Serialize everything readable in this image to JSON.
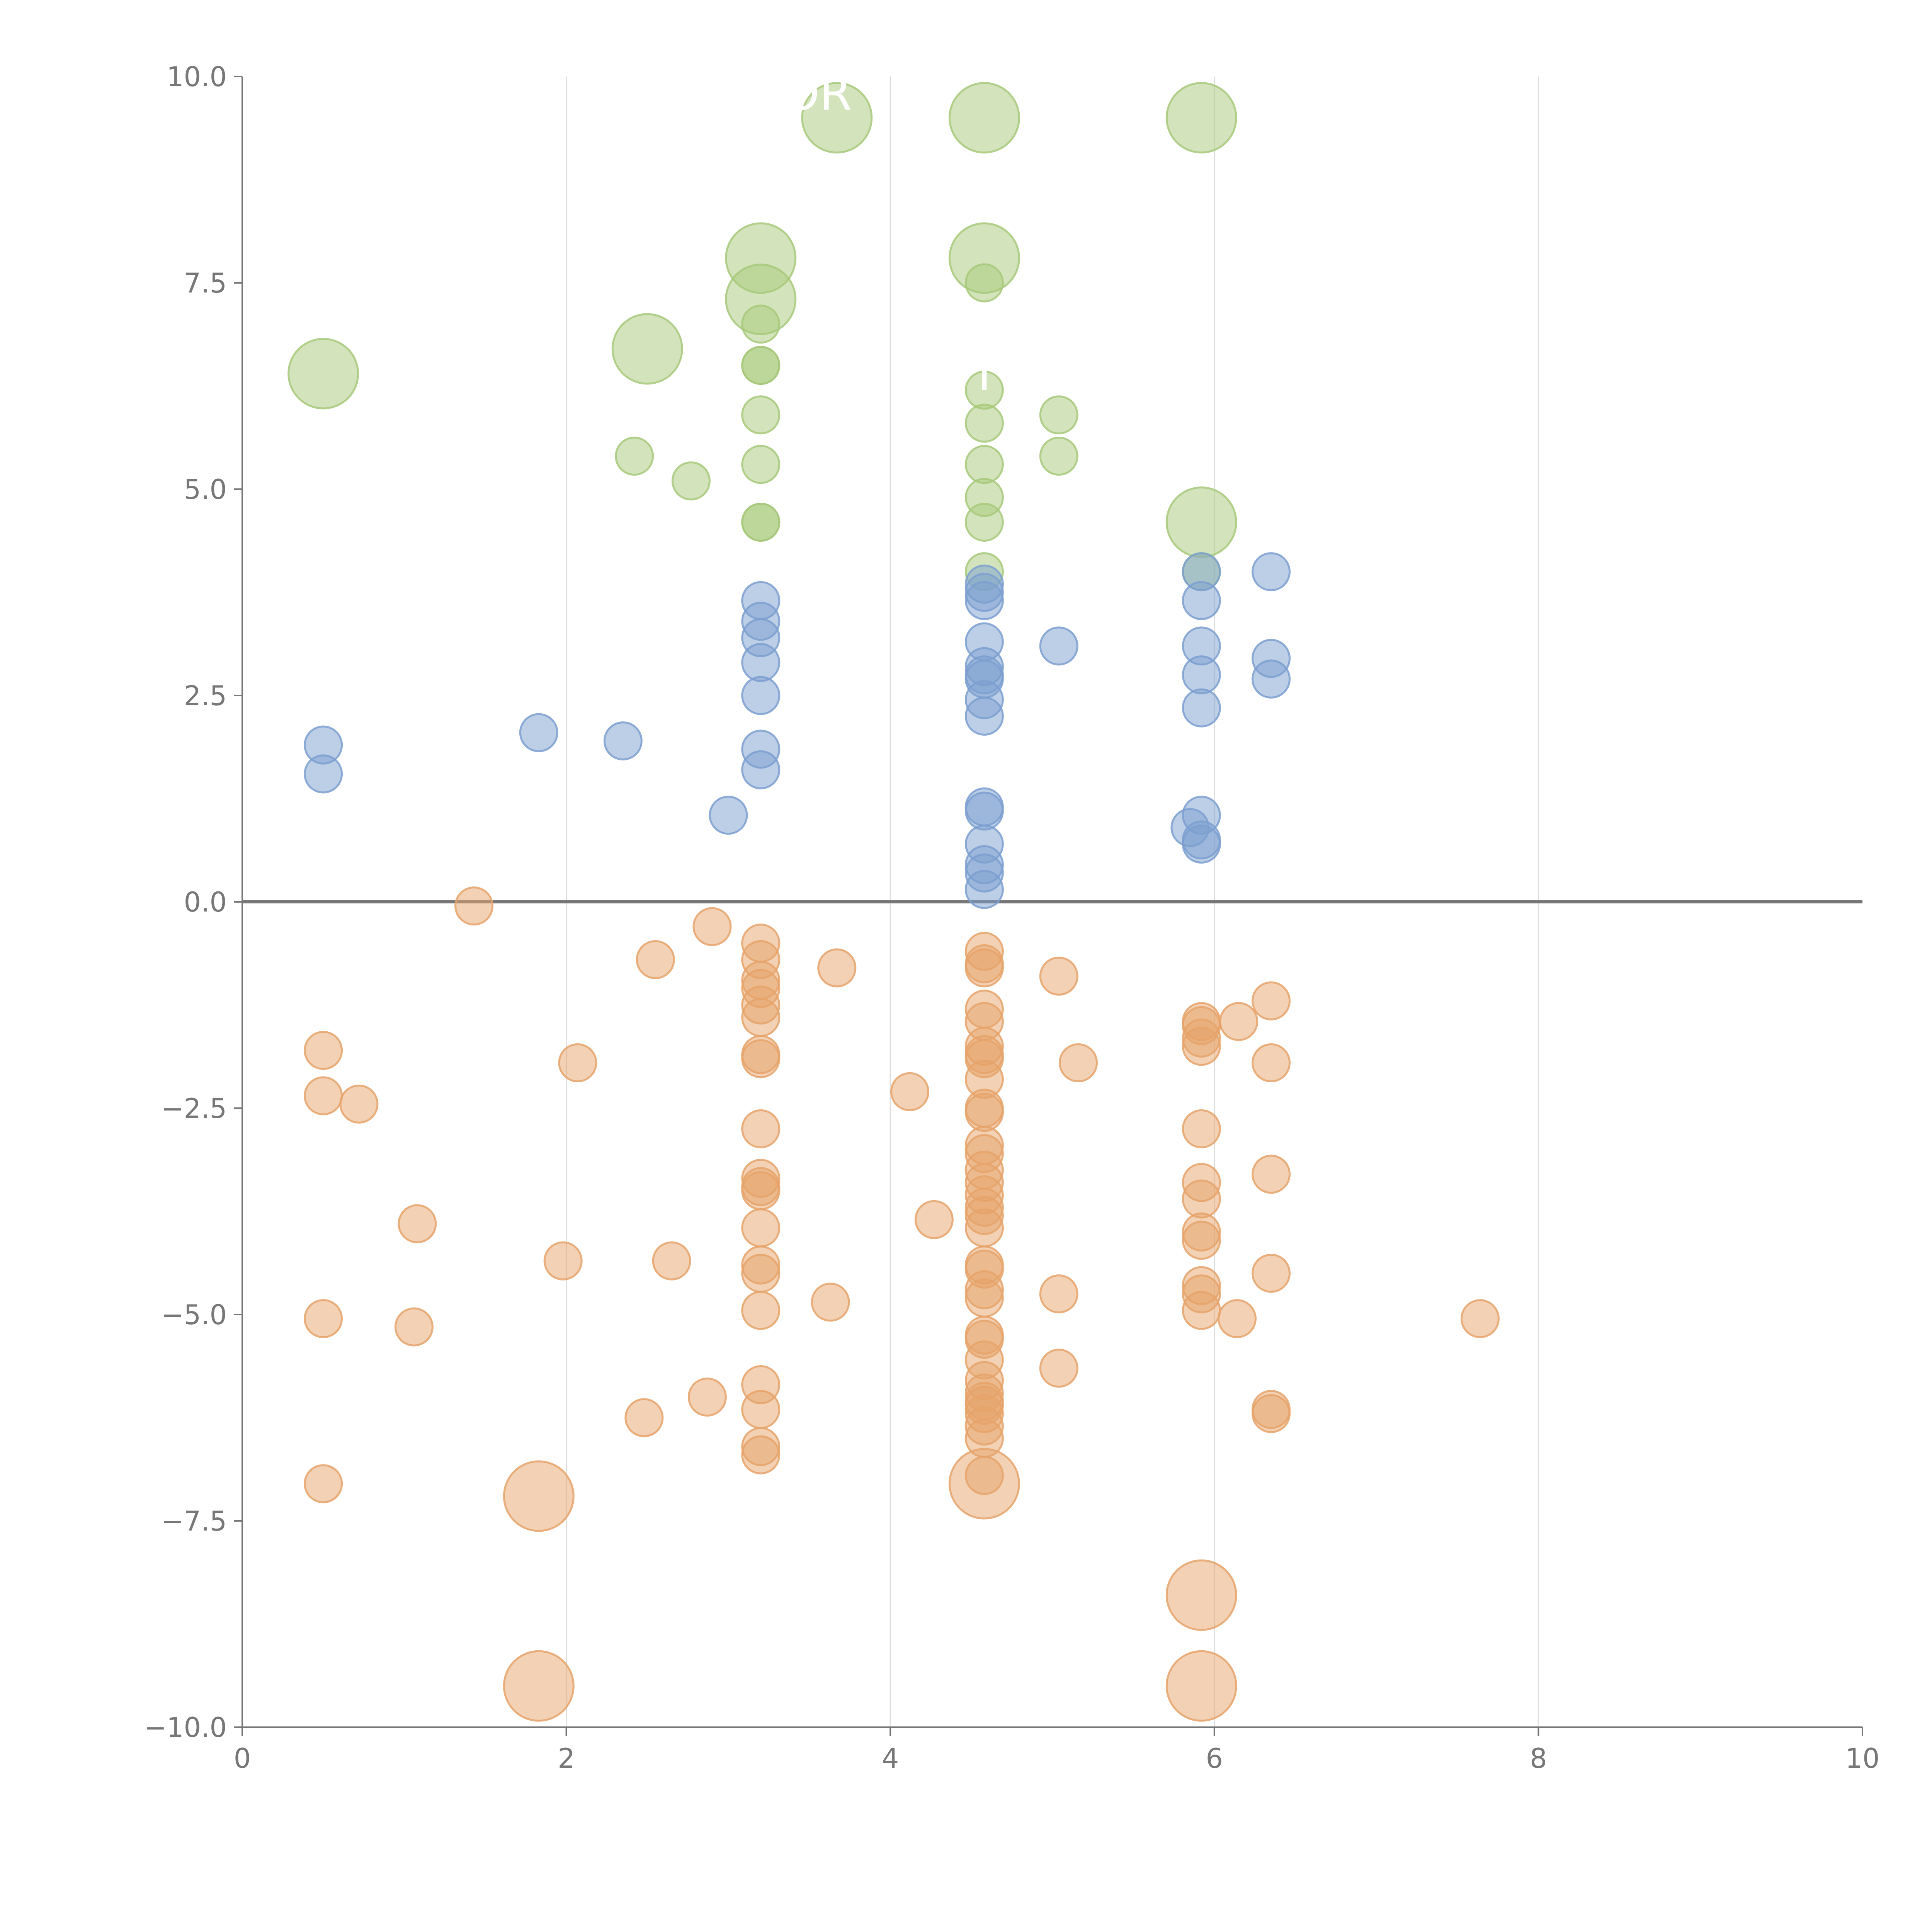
{
  "chart_data": {
    "type": "scatter",
    "title": "",
    "xlabel": "",
    "ylabel": "",
    "xlim": [
      0,
      10
    ],
    "ylim": [
      -10,
      10
    ],
    "x_ticks": [
      "0",
      "2",
      "4",
      "6",
      "8",
      "10"
    ],
    "y_ticks": [
      "10.0",
      "7.5",
      "5.0",
      "2.5",
      "0.0",
      "−2.5",
      "−5.0",
      "−7.5",
      "−10.0"
    ],
    "x_tick_values": [
      0,
      2,
      4,
      6,
      8,
      10
    ],
    "y_tick_values": [
      10,
      7.5,
      5,
      2.5,
      0,
      -2.5,
      -5,
      -7.5,
      -10
    ],
    "vertical_gridlines_at": [
      2,
      4,
      6,
      8
    ],
    "zero_line": true,
    "series": [
      {
        "name": "green",
        "color": "#a7c97a",
        "points": [
          {
            "x": 0.5,
            "y": 6.4,
            "size": "large"
          },
          {
            "x": 2.5,
            "y": 6.7,
            "size": "large"
          },
          {
            "x": 3.2,
            "y": 7.8,
            "size": "large"
          },
          {
            "x": 3.2,
            "y": 7.3,
            "size": "large"
          },
          {
            "x": 3.67,
            "y": 9.5,
            "size": "large"
          },
          {
            "x": 4.58,
            "y": 9.5,
            "size": "large"
          },
          {
            "x": 4.58,
            "y": 7.8,
            "size": "large"
          },
          {
            "x": 5.92,
            "y": 9.5,
            "size": "large"
          },
          {
            "x": 5.92,
            "y": 4.6,
            "size": "large"
          },
          {
            "x": 2.42,
            "y": 5.4
          },
          {
            "x": 2.77,
            "y": 5.1
          },
          {
            "x": 3.2,
            "y": 7.0
          },
          {
            "x": 3.2,
            "y": 6.5
          },
          {
            "x": 3.2,
            "y": 6.5
          },
          {
            "x": 3.2,
            "y": 5.9
          },
          {
            "x": 3.2,
            "y": 5.3
          },
          {
            "x": 3.2,
            "y": 4.6
          },
          {
            "x": 3.2,
            "y": 4.6
          },
          {
            "x": 4.58,
            "y": 7.5
          },
          {
            "x": 4.58,
            "y": 6.2
          },
          {
            "x": 4.58,
            "y": 5.8
          },
          {
            "x": 4.58,
            "y": 5.3
          },
          {
            "x": 4.58,
            "y": 4.9
          },
          {
            "x": 4.58,
            "y": 4.6
          },
          {
            "x": 4.58,
            "y": 4.0
          },
          {
            "x": 5.04,
            "y": 5.9
          },
          {
            "x": 5.04,
            "y": 5.4
          },
          {
            "x": 5.92,
            "y": 4.0
          }
        ]
      },
      {
        "name": "blue",
        "color": "#7b9fd0",
        "points": [
          {
            "x": 0.5,
            "y": 1.9
          },
          {
            "x": 0.5,
            "y": 1.55
          },
          {
            "x": 1.83,
            "y": 2.05
          },
          {
            "x": 2.35,
            "y": 1.95
          },
          {
            "x": 3.0,
            "y": 1.05
          },
          {
            "x": 3.2,
            "y": 3.65
          },
          {
            "x": 3.2,
            "y": 3.4
          },
          {
            "x": 3.2,
            "y": 3.2
          },
          {
            "x": 3.2,
            "y": 2.9
          },
          {
            "x": 3.2,
            "y": 2.5
          },
          {
            "x": 3.2,
            "y": 1.85
          },
          {
            "x": 3.2,
            "y": 1.6
          },
          {
            "x": 4.58,
            "y": 3.85
          },
          {
            "x": 4.58,
            "y": 3.75
          },
          {
            "x": 4.58,
            "y": 3.65
          },
          {
            "x": 4.58,
            "y": 3.15
          },
          {
            "x": 4.58,
            "y": 2.85
          },
          {
            "x": 4.58,
            "y": 2.75
          },
          {
            "x": 4.58,
            "y": 2.7
          },
          {
            "x": 4.58,
            "y": 2.45
          },
          {
            "x": 4.58,
            "y": 2.25
          },
          {
            "x": 4.58,
            "y": 1.15
          },
          {
            "x": 4.58,
            "y": 1.1
          },
          {
            "x": 4.58,
            "y": 0.7
          },
          {
            "x": 4.58,
            "y": 0.45
          },
          {
            "x": 4.58,
            "y": 0.35
          },
          {
            "x": 4.58,
            "y": 0.15
          },
          {
            "x": 5.04,
            "y": 3.1
          },
          {
            "x": 5.92,
            "y": 4.0
          },
          {
            "x": 5.92,
            "y": 3.65
          },
          {
            "x": 5.92,
            "y": 3.1
          },
          {
            "x": 5.92,
            "y": 2.75
          },
          {
            "x": 5.92,
            "y": 2.35
          },
          {
            "x": 5.92,
            "y": 1.05
          },
          {
            "x": 5.85,
            "y": 0.9
          },
          {
            "x": 5.92,
            "y": 0.75
          },
          {
            "x": 5.92,
            "y": 0.7
          },
          {
            "x": 6.35,
            "y": 4.0
          },
          {
            "x": 6.35,
            "y": 2.95
          },
          {
            "x": 6.35,
            "y": 2.7
          }
        ]
      },
      {
        "name": "orange",
        "color": "#e6a36a",
        "points": [
          {
            "x": 1.83,
            "y": -7.2,
            "size": "large"
          },
          {
            "x": 1.83,
            "y": -9.5,
            "size": "large"
          },
          {
            "x": 4.58,
            "y": -7.05,
            "size": "large"
          },
          {
            "x": 5.92,
            "y": -8.4,
            "size": "large"
          },
          {
            "x": 5.92,
            "y": -9.5,
            "size": "large"
          },
          {
            "x": 0.5,
            "y": -1.8
          },
          {
            "x": 0.5,
            "y": -2.35
          },
          {
            "x": 0.72,
            "y": -2.45
          },
          {
            "x": 0.5,
            "y": -5.05
          },
          {
            "x": 0.5,
            "y": -7.05
          },
          {
            "x": 1.08,
            "y": -3.9
          },
          {
            "x": 1.06,
            "y": -5.15
          },
          {
            "x": 1.43,
            "y": -0.05
          },
          {
            "x": 1.98,
            "y": -4.35
          },
          {
            "x": 2.07,
            "y": -1.95
          },
          {
            "x": 2.48,
            "y": -6.25
          },
          {
            "x": 2.55,
            "y": -0.7
          },
          {
            "x": 2.65,
            "y": -4.35
          },
          {
            "x": 2.87,
            "y": -6.0
          },
          {
            "x": 2.9,
            "y": -0.3
          },
          {
            "x": 3.2,
            "y": -0.5
          },
          {
            "x": 3.2,
            "y": -0.7
          },
          {
            "x": 3.2,
            "y": -0.95
          },
          {
            "x": 3.2,
            "y": -1.05
          },
          {
            "x": 3.2,
            "y": -1.25
          },
          {
            "x": 3.2,
            "y": -1.4
          },
          {
            "x": 3.2,
            "y": -1.85
          },
          {
            "x": 3.2,
            "y": -1.9
          },
          {
            "x": 3.2,
            "y": -2.75
          },
          {
            "x": 3.2,
            "y": -3.35
          },
          {
            "x": 3.2,
            "y": -3.45
          },
          {
            "x": 3.2,
            "y": -3.5
          },
          {
            "x": 3.2,
            "y": -3.95
          },
          {
            "x": 3.2,
            "y": -4.4
          },
          {
            "x": 3.2,
            "y": -4.5
          },
          {
            "x": 3.2,
            "y": -4.95
          },
          {
            "x": 3.2,
            "y": -5.85
          },
          {
            "x": 3.2,
            "y": -6.15
          },
          {
            "x": 3.2,
            "y": -6.6
          },
          {
            "x": 3.2,
            "y": -6.7
          },
          {
            "x": 3.63,
            "y": -4.85
          },
          {
            "x": 3.67,
            "y": -0.8
          },
          {
            "x": 4.12,
            "y": -2.3
          },
          {
            "x": 4.27,
            "y": -3.85
          },
          {
            "x": 4.58,
            "y": -0.6
          },
          {
            "x": 4.58,
            "y": -0.75
          },
          {
            "x": 4.58,
            "y": -0.8
          },
          {
            "x": 4.58,
            "y": -1.3
          },
          {
            "x": 4.58,
            "y": -1.45
          },
          {
            "x": 4.58,
            "y": -1.75
          },
          {
            "x": 4.58,
            "y": -1.85
          },
          {
            "x": 4.58,
            "y": -1.9
          },
          {
            "x": 4.58,
            "y": -2.15
          },
          {
            "x": 4.58,
            "y": -2.5
          },
          {
            "x": 4.58,
            "y": -2.55
          },
          {
            "x": 4.58,
            "y": -2.95
          },
          {
            "x": 4.58,
            "y": -3.05
          },
          {
            "x": 4.58,
            "y": -3.25
          },
          {
            "x": 4.58,
            "y": -3.4
          },
          {
            "x": 4.58,
            "y": -3.55
          },
          {
            "x": 4.58,
            "y": -3.7
          },
          {
            "x": 4.58,
            "y": -3.8
          },
          {
            "x": 4.58,
            "y": -3.95
          },
          {
            "x": 4.58,
            "y": -4.4
          },
          {
            "x": 4.58,
            "y": -4.45
          },
          {
            "x": 4.58,
            "y": -4.7
          },
          {
            "x": 4.58,
            "y": -4.8
          },
          {
            "x": 4.58,
            "y": -5.25
          },
          {
            "x": 4.58,
            "y": -5.3
          },
          {
            "x": 4.58,
            "y": -5.55
          },
          {
            "x": 4.58,
            "y": -5.8
          },
          {
            "x": 4.58,
            "y": -5.95
          },
          {
            "x": 4.58,
            "y": -6.05
          },
          {
            "x": 4.58,
            "y": -6.1
          },
          {
            "x": 4.58,
            "y": -6.2
          },
          {
            "x": 4.58,
            "y": -6.35
          },
          {
            "x": 4.58,
            "y": -6.5
          },
          {
            "x": 4.58,
            "y": -6.95
          },
          {
            "x": 5.04,
            "y": -0.9
          },
          {
            "x": 5.04,
            "y": -4.75
          },
          {
            "x": 5.04,
            "y": -5.65
          },
          {
            "x": 5.16,
            "y": -1.95
          },
          {
            "x": 5.92,
            "y": -1.45
          },
          {
            "x": 5.92,
            "y": -1.5
          },
          {
            "x": 5.92,
            "y": -1.65
          },
          {
            "x": 5.92,
            "y": -1.75
          },
          {
            "x": 5.92,
            "y": -2.75
          },
          {
            "x": 5.92,
            "y": -3.4
          },
          {
            "x": 5.92,
            "y": -3.6
          },
          {
            "x": 5.92,
            "y": -4.0
          },
          {
            "x": 5.92,
            "y": -4.1
          },
          {
            "x": 5.92,
            "y": -4.65
          },
          {
            "x": 5.92,
            "y": -4.75
          },
          {
            "x": 5.92,
            "y": -4.95
          },
          {
            "x": 6.15,
            "y": -1.45
          },
          {
            "x": 6.14,
            "y": -5.05
          },
          {
            "x": 6.35,
            "y": -1.2
          },
          {
            "x": 6.35,
            "y": -1.95
          },
          {
            "x": 6.35,
            "y": -3.3
          },
          {
            "x": 6.35,
            "y": -4.5
          },
          {
            "x": 6.35,
            "y": -6.15
          },
          {
            "x": 6.35,
            "y": -6.2
          },
          {
            "x": 7.64,
            "y": -5.05
          }
        ]
      }
    ],
    "annotations": [
      {
        "text": "OR",
        "x": 3.55,
        "y": 9.6
      },
      {
        "text": "I",
        "x": 4.58,
        "y": 6.2
      }
    ]
  }
}
